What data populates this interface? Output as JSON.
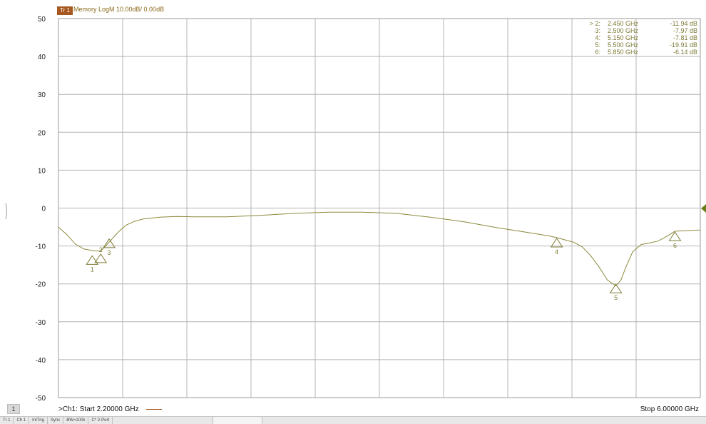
{
  "trace": {
    "badge": "Tr 1",
    "title": "Memory LogM 10.00dB/ 0.00dB",
    "color": "#a6581f",
    "curve_color": "#8c8a3c"
  },
  "channel": {
    "box_label": "1",
    "start_label": ">Ch1:  Start  2.20000 GHz",
    "stop_label": "Stop  6.00000 GHz"
  },
  "marker_table": [
    {
      "id": "> 2:",
      "freq": "2.450  GHz",
      "value": "-11.94 dB"
    },
    {
      "id": "3:",
      "freq": "2.500  GHz",
      "value": "-7.97 dB"
    },
    {
      "id": "4:",
      "freq": "5.150  GHz",
      "value": "-7.81 dB"
    },
    {
      "id": "5:",
      "freq": "5.500  GHz",
      "value": "-19.91 dB"
    },
    {
      "id": "6:",
      "freq": "5.850  GHz",
      "value": "-6.14 dB"
    }
  ],
  "status_bar": [
    "Tr 1",
    "Ch 1",
    "IntTrig",
    "Sync",
    "BW=100k",
    "C* 2-Port"
  ],
  "chart_data": {
    "type": "line",
    "xlim": [
      2.2,
      6.0
    ],
    "ylim": [
      -50,
      50
    ],
    "ystep": 10,
    "xdivisions": 10,
    "grid": true,
    "yticks": [
      "50",
      "40",
      "30",
      "20",
      "10",
      "0",
      "-10",
      "-20",
      "-30",
      "-40",
      "-50"
    ],
    "series": [
      {
        "x": [
          2.2,
          2.25,
          2.3,
          2.35,
          2.4,
          2.45,
          2.5,
          2.55,
          2.6,
          2.65,
          2.7,
          2.8,
          2.9,
          3.0,
          3.2,
          3.4,
          3.6,
          3.8,
          4.0,
          4.2,
          4.4,
          4.6,
          4.8,
          4.9,
          5.0,
          5.1,
          5.15,
          5.2,
          5.25,
          5.3,
          5.35,
          5.4,
          5.45,
          5.5,
          5.53,
          5.56,
          5.6,
          5.65,
          5.7,
          5.75,
          5.8,
          5.85,
          5.9,
          5.95,
          6.0
        ],
        "y": [
          -5.0,
          -7.0,
          -9.5,
          -10.8,
          -11.2,
          -11.4,
          -9.0,
          -6.5,
          -4.5,
          -3.5,
          -2.9,
          -2.4,
          -2.2,
          -2.3,
          -2.3,
          -1.9,
          -1.4,
          -1.1,
          -1.1,
          -1.4,
          -2.4,
          -3.6,
          -5.2,
          -5.9,
          -6.6,
          -7.3,
          -7.8,
          -8.4,
          -9.0,
          -10.2,
          -12.5,
          -15.5,
          -19.0,
          -20.5,
          -19.0,
          -15.5,
          -11.5,
          -9.6,
          -9.2,
          -8.7,
          -7.5,
          -6.1,
          -6.0,
          -5.9,
          -5.8
        ]
      }
    ],
    "markers": [
      {
        "label": "1",
        "x": 2.4,
        "y": -12.4,
        "label_pos": "below"
      },
      {
        "label": "2",
        "x": 2.45,
        "y": -11.94,
        "label_pos": "above"
      },
      {
        "label": "3",
        "x": 2.5,
        "y": -7.97,
        "label_pos": "below"
      },
      {
        "label": "4",
        "x": 5.15,
        "y": -7.81,
        "label_pos": "below"
      },
      {
        "label": "5",
        "x": 5.5,
        "y": -19.91,
        "label_pos": "below"
      },
      {
        "label": "6",
        "x": 5.85,
        "y": -6.14,
        "label_pos": "below"
      }
    ]
  }
}
